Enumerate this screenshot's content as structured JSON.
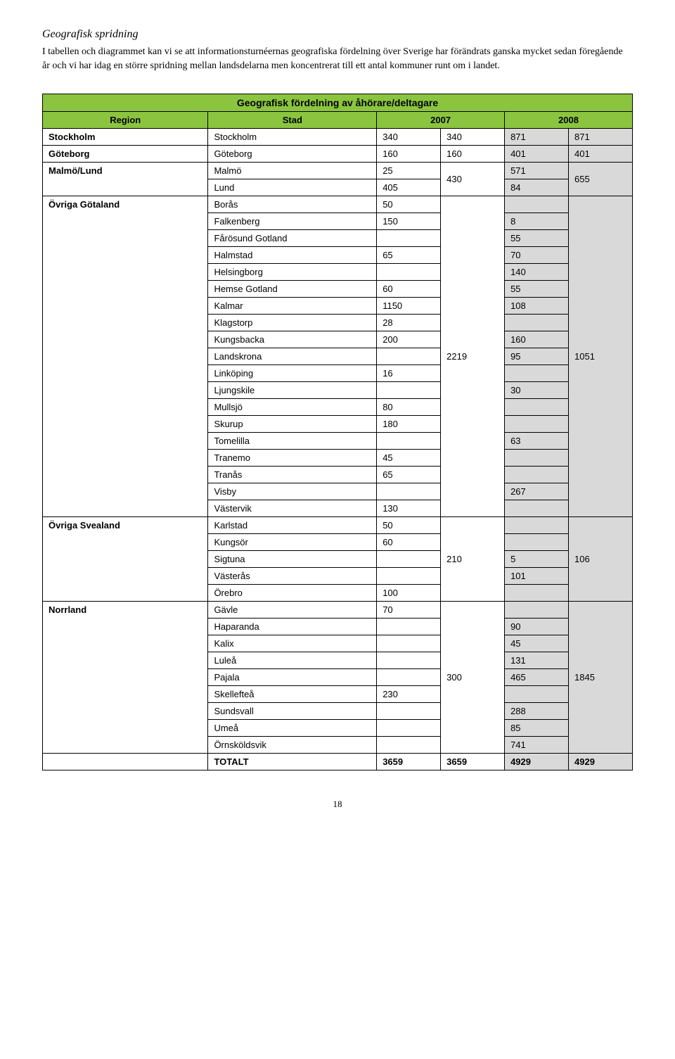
{
  "section_title": "Geografisk spridning",
  "intro": "I tabellen och diagrammet kan vi se att informationsturnéernas geografiska fördelning över Sverige har förändrats ganska mycket sedan föregående år och vi har idag en större spridning mellan landsdelarna men koncentrerat till ett antal kommuner runt om i landet.",
  "table_title": "Geografisk fördelning av åhörare/deltagare",
  "headers": {
    "region": "Region",
    "city": "Stad",
    "y2007": "2007",
    "y2008": "2008"
  },
  "regions": {
    "stockholm": {
      "label": "Stockholm",
      "city": "Stockholm",
      "v1": "340",
      "sum07": "340",
      "v2": "871",
      "sum08": "871"
    },
    "goteborg": {
      "label": "Göteborg",
      "city": "Göteborg",
      "v1": "160",
      "sum07": "160",
      "v2": "401",
      "sum08": "401"
    },
    "malmolund": {
      "label": "Malmö/Lund",
      "sum07": "430",
      "sum08": "655",
      "rows": [
        {
          "city": "Malmö",
          "v1": "25",
          "v2": "571"
        },
        {
          "city": "Lund",
          "v1": "405",
          "v2": "84"
        }
      ]
    },
    "ovr_gota": {
      "label": "Övriga Götaland",
      "sum07": "2219",
      "sum08": "1051",
      "rows": [
        {
          "city": "Borås",
          "v1": "50",
          "v2": ""
        },
        {
          "city": "Falkenberg",
          "v1": "150",
          "v2": "8"
        },
        {
          "city": "Fårösund Gotland",
          "v1": "",
          "v2": "55"
        },
        {
          "city": "Halmstad",
          "v1": "65",
          "v2": "70"
        },
        {
          "city": "Helsingborg",
          "v1": "",
          "v2": "140"
        },
        {
          "city": "Hemse Gotland",
          "v1": "60",
          "v2": "55"
        },
        {
          "city": "Kalmar",
          "v1": "1150",
          "v2": "108"
        },
        {
          "city": "Klagstorp",
          "v1": "28",
          "v2": ""
        },
        {
          "city": "Kungsbacka",
          "v1": "200",
          "v2": "160"
        },
        {
          "city": "Landskrona",
          "v1": "",
          "v2": "95"
        },
        {
          "city": "Linköping",
          "v1": "16",
          "v2": ""
        },
        {
          "city": "Ljungskile",
          "v1": "",
          "v2": "30"
        },
        {
          "city": "Mullsjö",
          "v1": "80",
          "v2": ""
        },
        {
          "city": "Skurup",
          "v1": "180",
          "v2": ""
        },
        {
          "city": "Tomelilla",
          "v1": "",
          "v2": "63"
        },
        {
          "city": "Tranemo",
          "v1": "45",
          "v2": ""
        },
        {
          "city": "Tranås",
          "v1": "65",
          "v2": ""
        },
        {
          "city": "Visby",
          "v1": "",
          "v2": "267"
        },
        {
          "city": "Västervik",
          "v1": "130",
          "v2": ""
        }
      ]
    },
    "ovr_svea": {
      "label": "Övriga Svealand",
      "sum07": "210",
      "sum08": "106",
      "rows": [
        {
          "city": "Karlstad",
          "v1": "50",
          "v2": ""
        },
        {
          "city": "Kungsör",
          "v1": "60",
          "v2": ""
        },
        {
          "city": "Sigtuna",
          "v1": "",
          "v2": "5"
        },
        {
          "city": "Västerås",
          "v1": "",
          "v2": "101"
        },
        {
          "city": "Örebro",
          "v1": "100",
          "v2": ""
        }
      ]
    },
    "norrland": {
      "label": "Norrland",
      "sum07": "300",
      "sum08": "1845",
      "rows": [
        {
          "city": "Gävle",
          "v1": "70",
          "v2": ""
        },
        {
          "city": "Haparanda",
          "v1": "",
          "v2": "90"
        },
        {
          "city": "Kalix",
          "v1": "",
          "v2": "45"
        },
        {
          "city": "Luleå",
          "v1": "",
          "v2": "131"
        },
        {
          "city": "Pajala",
          "v1": "",
          "v2": "465"
        },
        {
          "city": "Skellefteå",
          "v1": "230",
          "v2": ""
        },
        {
          "city": "Sundsvall",
          "v1": "",
          "v2": "288"
        },
        {
          "city": "Umeå",
          "v1": "",
          "v2": "85"
        },
        {
          "city": "Örnsköldsvik",
          "v1": "",
          "v2": "741"
        }
      ]
    }
  },
  "totals": {
    "label": "TOTALT",
    "v1": "3659",
    "sum07": "3659",
    "v2": "4929",
    "sum08": "4929"
  },
  "page_number": "18",
  "colors": {
    "header_bg": "#8bc53f",
    "shade_bg": "#d9d9d9"
  }
}
